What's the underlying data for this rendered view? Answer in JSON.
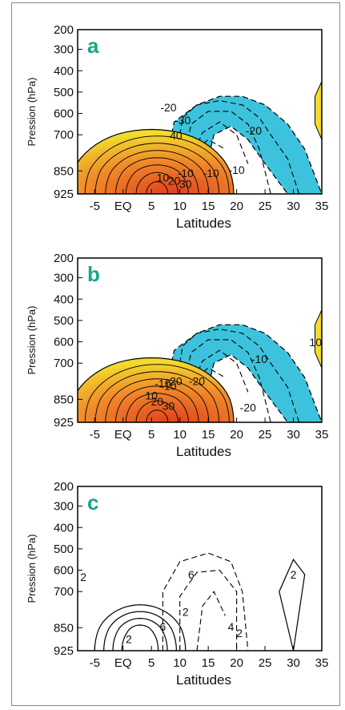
{
  "chart_data": [
    {
      "type": "contour",
      "panel_label": "a",
      "xlabel": "Latitudes",
      "ylabel": "Pression (hPa)",
      "x_ticks": [
        "-5",
        "EQ",
        "5",
        "10",
        "15",
        "20",
        "25",
        "30",
        "35"
      ],
      "y_ticks": [
        "200",
        "300",
        "400",
        "500",
        "600",
        "700",
        "850",
        "925"
      ],
      "xlim": [
        -8,
        35
      ],
      "ylim": [
        925,
        200
      ],
      "contour_labels": [
        "-20",
        "-30",
        "-40",
        "-10",
        "-20",
        "-10",
        "10",
        "20",
        "30",
        "-10"
      ]
    },
    {
      "type": "contour",
      "panel_label": "b",
      "xlabel": "Latitudes",
      "ylabel": "Pression (hPa)",
      "x_ticks": [
        "-5",
        "EQ",
        "5",
        "10",
        "15",
        "20",
        "25",
        "30",
        "35"
      ],
      "y_ticks": [
        "200",
        "300",
        "400",
        "500",
        "600",
        "700",
        "850",
        "925"
      ],
      "xlim": [
        -8,
        35
      ],
      "ylim": [
        925,
        200
      ],
      "contour_labels": [
        "-20",
        "-20",
        "-10",
        "-10",
        "-20",
        "-10",
        "10",
        "20",
        "30",
        "10"
      ]
    },
    {
      "type": "contour",
      "panel_label": "c",
      "xlabel": "Latitudes",
      "ylabel": "Pression (hPa)",
      "x_ticks": [
        "-5",
        "EQ",
        "5",
        "10",
        "15",
        "20",
        "25",
        "30",
        "35"
      ],
      "y_ticks": [
        "200",
        "300",
        "400",
        "500",
        "600",
        "700",
        "850",
        "925"
      ],
      "xlim": [
        -8,
        35
      ],
      "ylim": [
        925,
        200
      ],
      "contour_labels": [
        "6",
        "2",
        "4",
        "2",
        "2",
        "2",
        "6",
        "2"
      ]
    }
  ],
  "colors": {
    "label": "#1aa58a",
    "negative_fill": "#3cc2dc",
    "positive_outer": "#f2dc2c",
    "positive_inner": "#e0401e"
  }
}
